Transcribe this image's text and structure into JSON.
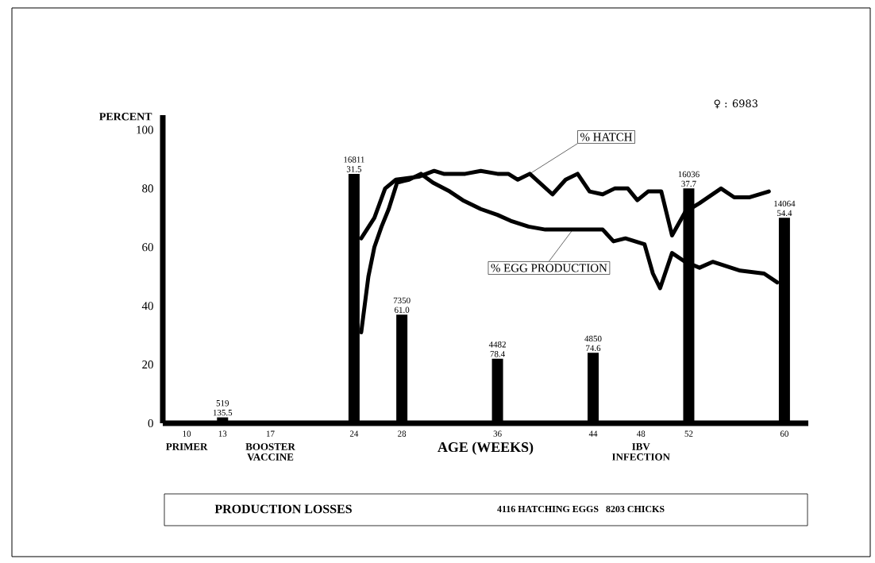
{
  "chart_data": {
    "type": "line",
    "xlabel": "AGE (WEEKS)",
    "ylabel": "PERCENT",
    "xlim": [
      8,
      62
    ],
    "ylim": [
      0,
      105
    ],
    "xticks": [
      10,
      13,
      17,
      24,
      28,
      36,
      44,
      48,
      52,
      60
    ],
    "yticks": [
      0,
      20,
      40,
      60,
      80,
      100
    ],
    "line_style": "solid",
    "marker": "none",
    "grid": false,
    "series": [
      {
        "type": "bar",
        "color": "#000000",
        "x": [
          13,
          24,
          28,
          36,
          44,
          52,
          60
        ],
        "values": [
          2,
          85,
          37,
          22,
          24,
          80,
          70
        ]
      },
      {
        "name": "% HATCH",
        "color": "#000000",
        "x": [
          24.6,
          25.7,
          26.6,
          27.5,
          29.4,
          30.7,
          31.5,
          33.3,
          34.6,
          36,
          36.9,
          37.7,
          38.7,
          40.6,
          41.7,
          42.7,
          43.7,
          44.8,
          45.8,
          46.9,
          47.7,
          48.6,
          49.7,
          50.6,
          51.7,
          52.9,
          54.7,
          55.8,
          57.1,
          58.7
        ],
        "values": [
          63,
          70,
          80,
          83,
          84,
          86,
          85,
          85,
          86,
          85,
          85,
          83,
          85,
          78,
          83,
          85,
          79,
          78,
          80,
          80,
          76,
          79,
          79,
          64,
          72,
          75,
          80,
          77,
          77,
          79
        ]
      },
      {
        "name": "% EGG PRODUCTION",
        "color": "#000000",
        "x": [
          24.6,
          25.2,
          25.7,
          26.3,
          26.9,
          27.6,
          28.6,
          29.6,
          30.6,
          32,
          33.1,
          34.6,
          36,
          37.1,
          38.6,
          40,
          42.3,
          43.7,
          44.8,
          45.7,
          46.7,
          48.3,
          49,
          49.6,
          50.6,
          51.7,
          52.9,
          54,
          56.3,
          58.3,
          59.4
        ],
        "values": [
          31,
          50,
          60,
          67,
          73,
          82,
          83,
          85,
          82,
          79,
          76,
          73,
          71,
          69,
          67,
          66,
          66,
          66,
          66,
          62,
          63,
          61,
          51,
          46,
          58,
          55,
          53,
          55,
          52,
          51,
          48
        ]
      }
    ],
    "annotations": [
      {
        "text": "519 135.5",
        "x": 13,
        "y": 2
      },
      {
        "text": "16811 31.5",
        "x": 24,
        "y": 85
      },
      {
        "text": "7350 61.0",
        "x": 28,
        "y": 37
      },
      {
        "text": "4482 78.4",
        "x": 36,
        "y": 22
      },
      {
        "text": "4850 74.6",
        "x": 44,
        "y": 24
      },
      {
        "text": "16036 37.7",
        "x": 52,
        "y": 80
      },
      {
        "text": "14064 54.4",
        "x": 60,
        "y": 70
      },
      "PRIMER",
      "BOOSTER VACCINE",
      "IBV INFECTION",
      "♀ : 6983",
      "PRODUCTION LOSSES",
      "4116 HATCHING EGGS",
      "8203 CHICKS"
    ]
  }
}
